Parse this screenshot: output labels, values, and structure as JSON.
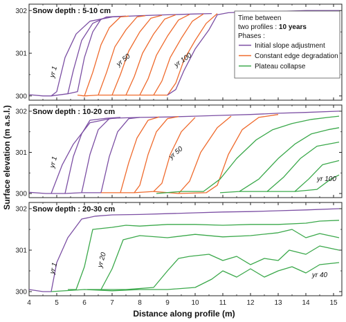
{
  "chart_data": {
    "type": "line",
    "xlabel": "Distance along profile (m)",
    "ylabel": "Surface elevation (m a.s.l.)",
    "xlim": [
      4,
      15.3
    ],
    "ylim": [
      299.9,
      302.15
    ],
    "x_ticks": [
      "4",
      "5",
      "6",
      "7",
      "8",
      "9",
      "10",
      "11",
      "12",
      "13",
      "14",
      "15"
    ],
    "y_ticks": [
      "300",
      "301",
      "302"
    ],
    "colors": {
      "initial": "#7b4ea3",
      "edge": "#ef6a2c",
      "collapse": "#3aa84a"
    },
    "legend": {
      "line1": "Time between",
      "line2_prefix": "two profiles : ",
      "line2_bold": "10 years",
      "phases_label": "Phases :",
      "entries": [
        {
          "label": "Initial slope adjustment",
          "color": "#7b4ea3"
        },
        {
          "label": "Constant edge degradation",
          "color": "#ef6a2c"
        },
        {
          "label": "Plateau collapse",
          "color": "#3aa84a"
        }
      ]
    },
    "panels": [
      {
        "title": "Snow depth : 5-10 cm",
        "annotations": [
          {
            "text": "yr 1",
            "x": 4.95,
            "y": 300.55,
            "rotate": -75
          },
          {
            "text": "yr 50",
            "x": 7.45,
            "y": 300.8,
            "rotate": -40
          },
          {
            "text": "yr 100",
            "x": 9.6,
            "y": 300.8,
            "rotate": -35
          }
        ],
        "series": [
          {
            "phase": "initial",
            "x": [
              4.0,
              4.5,
              4.8,
              5.0,
              5.3,
              5.7,
              6.2,
              7.0,
              8.0,
              9.0,
              10.0,
              10.6
            ],
            "y": [
              300.03,
              300.0,
              300.0,
              300.1,
              300.9,
              301.45,
              301.75,
              301.85,
              301.88,
              301.9,
              301.92,
              301.93
            ]
          },
          {
            "phase": "initial",
            "x": [
              4.8,
              5.4,
              5.6,
              5.9,
              6.3,
              6.8,
              7.5
            ],
            "y": [
              300.0,
              300.05,
              300.6,
              301.3,
              301.7,
              301.85,
              301.87
            ]
          },
          {
            "phase": "initial",
            "x": [
              5.4,
              5.75,
              6.0,
              6.3,
              6.6,
              7.0
            ],
            "y": [
              300.05,
              300.1,
              300.9,
              301.5,
              301.8,
              301.85
            ]
          },
          {
            "phase": "edge",
            "x": [
              5.75,
              6.0,
              6.3,
              6.6,
              6.9,
              7.3,
              7.6
            ],
            "y": [
              300.02,
              300.0,
              300.55,
              301.2,
              301.6,
              301.85,
              301.87
            ]
          },
          {
            "phase": "edge",
            "x": [
              6.0,
              6.5,
              6.8,
              7.1,
              7.5,
              7.9,
              8.2
            ],
            "y": [
              300.0,
              300.02,
              300.55,
              301.15,
              301.55,
              301.85,
              301.88
            ]
          },
          {
            "phase": "edge",
            "x": [
              6.5,
              7.0,
              7.3,
              7.6,
              8.0,
              8.4,
              8.8
            ],
            "y": [
              300.02,
              300.02,
              300.5,
              301.05,
              301.5,
              301.82,
              301.89
            ]
          },
          {
            "phase": "edge",
            "x": [
              7.0,
              7.5,
              7.8,
              8.1,
              8.5,
              8.9,
              9.3
            ],
            "y": [
              300.02,
              300.02,
              300.45,
              301.0,
              301.45,
              301.8,
              301.9
            ]
          },
          {
            "phase": "edge",
            "x": [
              7.5,
              8.0,
              8.3,
              8.6,
              9.0,
              9.4,
              9.8
            ],
            "y": [
              300.02,
              300.02,
              300.4,
              300.95,
              301.4,
              301.78,
              301.91
            ]
          },
          {
            "phase": "edge",
            "x": [
              8.0,
              8.5,
              8.8,
              9.1,
              9.5,
              9.9,
              10.3
            ],
            "y": [
              300.02,
              300.02,
              300.35,
              300.9,
              301.35,
              301.75,
              301.92
            ]
          },
          {
            "phase": "edge",
            "x": [
              8.5,
              9.0,
              9.3,
              9.6,
              10.0,
              10.4,
              10.8
            ],
            "y": [
              300.02,
              300.02,
              300.3,
              300.85,
              301.3,
              301.7,
              301.93
            ]
          },
          {
            "phase": "initial",
            "x": [
              9.0,
              9.3,
              9.6,
              10.0,
              10.5,
              10.8,
              11.2,
              12.0,
              13.0,
              14.0,
              15.2
            ],
            "y": [
              300.02,
              300.15,
              300.6,
              301.1,
              301.55,
              301.9,
              301.95,
              301.97,
              301.98,
              302.0,
              302.0
            ]
          }
        ]
      },
      {
        "title": "Snow depth : 10-20 cm",
        "annotations": [
          {
            "text": "yr 1",
            "x": 4.95,
            "y": 300.75,
            "rotate": -75
          },
          {
            "text": "yr 50",
            "x": 9.35,
            "y": 300.95,
            "rotate": -40
          },
          {
            "text": "yr 100",
            "x": 14.75,
            "y": 300.3,
            "rotate": 0
          }
        ],
        "series": [
          {
            "phase": "initial",
            "x": [
              4.0,
              4.6,
              4.8,
              5.2,
              5.6,
              6.2,
              7.0,
              8.0,
              9.0,
              10.0,
              11.0,
              12.0,
              13.0,
              14.0,
              15.2
            ],
            "y": [
              300.03,
              300.0,
              300.0,
              300.7,
              301.2,
              301.72,
              301.83,
              301.85,
              301.86,
              301.88,
              301.9,
              301.92,
              301.95,
              301.97,
              302.0
            ]
          },
          {
            "phase": "initial",
            "x": [
              4.8,
              5.3,
              5.6,
              5.9,
              6.2,
              6.8,
              7.3
            ],
            "y": [
              300.0,
              300.0,
              300.9,
              301.45,
              301.78,
              301.83,
              301.85
            ]
          },
          {
            "phase": "initial",
            "x": [
              5.3,
              5.9,
              6.2,
              6.5,
              6.9,
              7.3
            ],
            "y": [
              300.0,
              300.02,
              300.95,
              301.55,
              301.82,
              301.84
            ]
          },
          {
            "phase": "initial",
            "x": [
              5.9,
              6.6,
              6.9,
              7.2,
              7.6,
              8.0
            ],
            "y": [
              300.02,
              300.02,
              300.9,
              301.5,
              301.82,
              301.85
            ]
          },
          {
            "phase": "edge",
            "x": [
              6.6,
              7.3,
              7.6,
              7.9,
              8.3,
              8.7
            ],
            "y": [
              300.02,
              300.02,
              300.75,
              301.35,
              301.78,
              301.86
            ]
          },
          {
            "phase": "edge",
            "x": [
              7.3,
              7.8,
              8.0,
              8.3,
              8.6,
              9.0,
              9.4
            ],
            "y": [
              300.02,
              300.02,
              300.2,
              300.95,
              301.5,
              301.82,
              301.87
            ]
          },
          {
            "phase": "edge",
            "x": [
              7.8,
              8.5,
              8.8,
              9.1,
              9.5,
              10.0
            ],
            "y": [
              300.02,
              300.05,
              300.25,
              300.95,
              301.5,
              301.85
            ]
          },
          {
            "phase": "edge",
            "x": [
              8.5,
              9.4,
              9.8,
              10.2,
              10.8,
              11.3
            ],
            "y": [
              300.05,
              300.0,
              300.3,
              301.0,
              301.6,
              301.88
            ]
          },
          {
            "phase": "edge",
            "x": [
              9.4,
              10.4,
              10.8,
              11.2,
              11.7,
              12.3,
              13.0
            ],
            "y": [
              300.0,
              300.02,
              300.2,
              300.95,
              301.55,
              301.85,
              301.92
            ]
          },
          {
            "phase": "collapse",
            "x": [
              8.6,
              9.5,
              10.3,
              10.9,
              11.5,
              12.2,
              12.8,
              13.5,
              14.2,
              14.8,
              15.2
            ],
            "y": [
              300.0,
              300.05,
              300.05,
              300.35,
              300.85,
              301.3,
              301.55,
              301.7,
              301.8,
              301.85,
              301.88
            ]
          },
          {
            "phase": "collapse",
            "x": [
              10.9,
              11.6,
              12.3,
              13.0,
              13.6,
              14.2,
              14.8,
              15.2
            ],
            "y": [
              300.02,
              300.05,
              300.35,
              300.85,
              301.2,
              301.45,
              301.55,
              301.6
            ]
          },
          {
            "phase": "collapse",
            "x": [
              11.6,
              12.6,
              13.2,
              13.8,
              14.4,
              15.2
            ],
            "y": [
              300.05,
              300.05,
              300.4,
              300.85,
              301.15,
              301.25
            ]
          },
          {
            "phase": "collapse",
            "x": [
              12.6,
              13.6,
              14.1,
              14.6,
              15.2
            ],
            "y": [
              300.05,
              300.05,
              300.35,
              300.7,
              300.8
            ]
          },
          {
            "phase": "collapse",
            "x": [
              13.6,
              14.4,
              14.9,
              15.2
            ],
            "y": [
              300.05,
              300.1,
              300.35,
              300.45
            ]
          }
        ]
      },
      {
        "title": "Snow depth : 20-30 cm",
        "annotations": [
          {
            "text": "yr 1",
            "x": 4.95,
            "y": 300.55,
            "rotate": -75
          },
          {
            "text": "yr 20",
            "x": 6.7,
            "y": 300.75,
            "rotate": -75
          },
          {
            "text": "yr 40",
            "x": 14.5,
            "y": 300.35,
            "rotate": 0
          }
        ],
        "series": [
          {
            "phase": "initial",
            "x": [
              4.0,
              4.5,
              4.8,
              5.0,
              5.4,
              5.9,
              6.4,
              7.0,
              8.0,
              9.0,
              10.0,
              11.0,
              12.0,
              13.0,
              14.0,
              15.2
            ],
            "y": [
              300.05,
              300.0,
              300.0,
              300.7,
              301.3,
              301.75,
              301.82,
              301.85,
              301.86,
              301.88,
              301.9,
              301.92,
              301.93,
              301.95,
              301.97,
              302.0
            ]
          },
          {
            "phase": "collapse",
            "x": [
              5.4,
              5.7,
              6.0,
              6.3,
              7.0,
              7.5,
              8.0,
              9.0,
              10.0,
              11.0,
              12.0,
              13.0,
              14.0,
              14.5,
              15.2
            ],
            "y": [
              300.05,
              300.05,
              300.6,
              301.5,
              301.55,
              301.6,
              301.58,
              301.62,
              301.62,
              301.6,
              301.62,
              301.62,
              301.65,
              301.7,
              301.72
            ]
          },
          {
            "phase": "collapse",
            "x": [
              6.1,
              6.6,
              7.0,
              7.4,
              8.0,
              9.0,
              10.0,
              11.0,
              12.0,
              13.0,
              13.5,
              14.0,
              14.5,
              15.2
            ],
            "y": [
              300.05,
              300.05,
              300.55,
              301.25,
              301.35,
              301.3,
              301.38,
              301.32,
              301.35,
              301.42,
              301.5,
              301.3,
              301.4,
              301.3
            ]
          },
          {
            "phase": "collapse",
            "x": [
              6.6,
              7.5,
              8.5,
              9.0,
              9.4,
              9.8,
              10.5,
              11.0,
              11.5,
              12.0,
              12.5,
              13.0,
              13.4,
              14.0,
              14.5,
              15.2
            ],
            "y": [
              300.05,
              300.05,
              300.1,
              300.5,
              300.8,
              300.85,
              300.9,
              300.75,
              300.85,
              300.65,
              300.8,
              300.75,
              301.0,
              300.9,
              301.1,
              301.0
            ]
          },
          {
            "phase": "collapse",
            "x": [
              4.8,
              6.0,
              7.0,
              8.0,
              9.0,
              10.0,
              10.6,
              11.0,
              11.5,
              12.0,
              12.5,
              13.0,
              13.5,
              14.0,
              14.5,
              15.2
            ],
            "y": [
              300.0,
              300.05,
              300.02,
              300.05,
              300.05,
              300.1,
              300.3,
              300.5,
              300.35,
              300.55,
              300.35,
              300.5,
              300.6,
              300.45,
              300.65,
              300.7
            ]
          }
        ]
      }
    ]
  }
}
